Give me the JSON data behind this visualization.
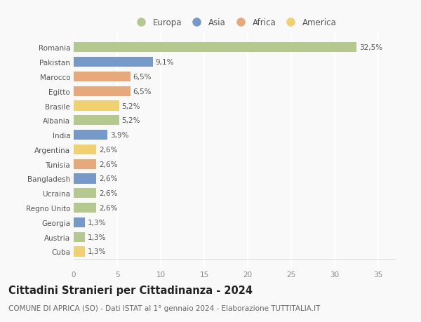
{
  "countries": [
    "Romania",
    "Pakistan",
    "Marocco",
    "Egitto",
    "Brasile",
    "Albania",
    "India",
    "Argentina",
    "Tunisia",
    "Bangladesh",
    "Ucraina",
    "Regno Unito",
    "Georgia",
    "Austria",
    "Cuba"
  ],
  "values": [
    32.5,
    9.1,
    6.5,
    6.5,
    5.2,
    5.2,
    3.9,
    2.6,
    2.6,
    2.6,
    2.6,
    2.6,
    1.3,
    1.3,
    1.3
  ],
  "labels": [
    "32,5%",
    "9,1%",
    "6,5%",
    "6,5%",
    "5,2%",
    "5,2%",
    "3,9%",
    "2,6%",
    "2,6%",
    "2,6%",
    "2,6%",
    "2,6%",
    "1,3%",
    "1,3%",
    "1,3%"
  ],
  "continents": [
    "Europa",
    "Asia",
    "Africa",
    "Africa",
    "America",
    "Europa",
    "Asia",
    "America",
    "Africa",
    "Asia",
    "Europa",
    "Europa",
    "Asia",
    "Europa",
    "America"
  ],
  "continent_colors": {
    "Europa": "#b5c98e",
    "Asia": "#7599c8",
    "Africa": "#e8a97a",
    "America": "#f0d070"
  },
  "legend_order": [
    "Europa",
    "Asia",
    "Africa",
    "America"
  ],
  "title": "Cittadini Stranieri per Cittadinanza - 2024",
  "subtitle": "COMUNE DI APRICA (SO) - Dati ISTAT al 1° gennaio 2024 - Elaborazione TUTTITALIA.IT",
  "xlim": [
    0,
    37
  ],
  "xticks": [
    0,
    5,
    10,
    15,
    20,
    25,
    30,
    35
  ],
  "background_color": "#f9f9f9",
  "grid_color": "#ffffff",
  "bar_height": 0.68,
  "label_fontsize": 7.5,
  "tick_fontsize": 7.5,
  "title_fontsize": 10.5,
  "subtitle_fontsize": 7.5
}
